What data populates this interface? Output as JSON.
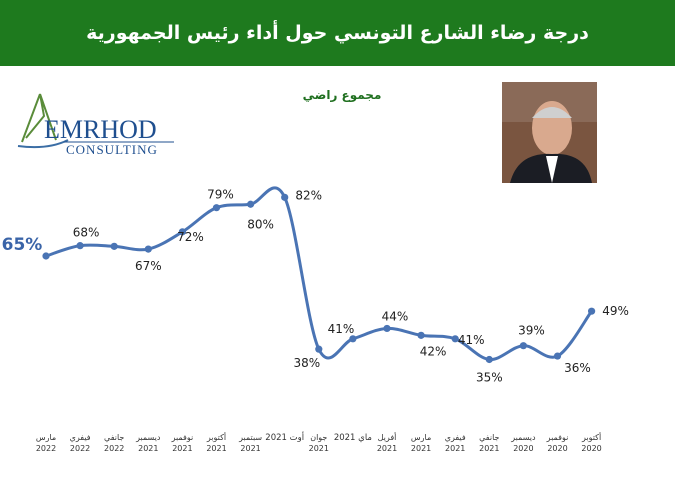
{
  "title": "درجة رضاء الشارع التونسي حول أداء رئيس الجمهورية",
  "logo": {
    "brand": "EMRHOD",
    "sub": "CONSULTING"
  },
  "series_label": "مجموع راضي",
  "colors": {
    "banner": "#1e7a1e",
    "line": "#4a74b4",
    "series_label": "#1f6f1f"
  },
  "chart_data": {
    "type": "line",
    "x": [
      [
        "مارس",
        "2022"
      ],
      [
        "فيفري",
        "2022"
      ],
      [
        "جانفي",
        "2022"
      ],
      [
        "ديسمبر",
        "2021"
      ],
      [
        "نوفمبر",
        "2021"
      ],
      [
        "أكتوبر",
        "2021"
      ],
      [
        "سبتمبر",
        "2021"
      ],
      [
        "أوت 2021",
        ""
      ],
      [
        "جوان",
        "2021"
      ],
      [
        "ماي 2021",
        ""
      ],
      [
        "أفريل",
        "2021"
      ],
      [
        "مارس",
        "2021"
      ],
      [
        "فيفري",
        "2021"
      ],
      [
        "جانفي",
        "2021"
      ],
      [
        "ديسمبر",
        "2020"
      ],
      [
        "نوفمبر",
        "2020"
      ],
      [
        "أكتوبر",
        "2020"
      ]
    ],
    "series": [
      {
        "name": "مجموع راضي",
        "values": [
          65,
          68,
          null,
          67,
          72,
          79,
          80,
          82,
          38,
          41,
          44,
          42,
          41,
          35,
          39,
          36,
          49
        ],
        "labels": [
          "65%",
          "68%",
          "",
          "67%",
          "72%",
          "79%",
          "80%",
          "82%",
          "38%",
          "41%",
          "44%",
          "42%",
          "41%",
          "35%",
          "39%",
          "36%",
          "49%"
        ]
      }
    ]
  }
}
